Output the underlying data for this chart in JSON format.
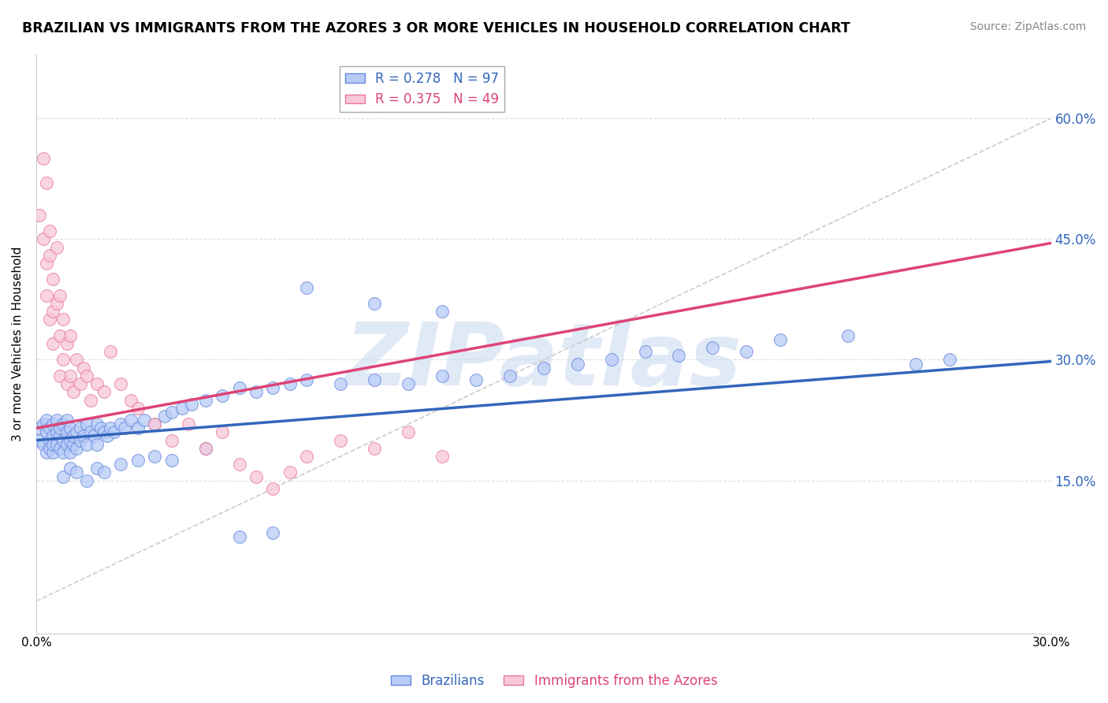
{
  "title": "BRAZILIAN VS IMMIGRANTS FROM THE AZORES 3 OR MORE VEHICLES IN HOUSEHOLD CORRELATION CHART",
  "source": "Source: ZipAtlas.com",
  "ylabel": "3 or more Vehicles in Household",
  "y_ticks": [
    0.15,
    0.3,
    0.45,
    0.6
  ],
  "y_tick_labels": [
    "15.0%",
    "30.0%",
    "45.0%",
    "60.0%"
  ],
  "xlim": [
    0.0,
    0.3
  ],
  "ylim": [
    -0.04,
    0.68
  ],
  "legend_entry1": "R = 0.278   N = 97",
  "legend_entry2": "R = 0.375   N = 49",
  "watermark": "ZIPatlas",
  "blue_scatter_x": [
    0.001,
    0.001,
    0.002,
    0.002,
    0.003,
    0.003,
    0.003,
    0.004,
    0.004,
    0.004,
    0.005,
    0.005,
    0.005,
    0.005,
    0.006,
    0.006,
    0.006,
    0.007,
    0.007,
    0.007,
    0.008,
    0.008,
    0.008,
    0.009,
    0.009,
    0.009,
    0.01,
    0.01,
    0.01,
    0.011,
    0.011,
    0.012,
    0.012,
    0.013,
    0.013,
    0.014,
    0.015,
    0.015,
    0.016,
    0.017,
    0.018,
    0.018,
    0.019,
    0.02,
    0.021,
    0.022,
    0.023,
    0.025,
    0.026,
    0.028,
    0.03,
    0.032,
    0.035,
    0.038,
    0.04,
    0.043,
    0.046,
    0.05,
    0.055,
    0.06,
    0.065,
    0.07,
    0.075,
    0.08,
    0.09,
    0.1,
    0.11,
    0.12,
    0.13,
    0.14,
    0.15,
    0.16,
    0.17,
    0.18,
    0.19,
    0.2,
    0.21,
    0.22,
    0.24,
    0.26,
    0.27,
    0.008,
    0.01,
    0.012,
    0.015,
    0.018,
    0.02,
    0.025,
    0.03,
    0.035,
    0.04,
    0.05,
    0.06,
    0.07,
    0.08,
    0.1,
    0.12
  ],
  "blue_scatter_y": [
    0.215,
    0.2,
    0.22,
    0.195,
    0.21,
    0.185,
    0.225,
    0.2,
    0.215,
    0.19,
    0.205,
    0.22,
    0.185,
    0.195,
    0.21,
    0.195,
    0.225,
    0.205,
    0.19,
    0.215,
    0.2,
    0.185,
    0.22,
    0.195,
    0.21,
    0.225,
    0.2,
    0.185,
    0.215,
    0.195,
    0.205,
    0.21,
    0.19,
    0.215,
    0.2,
    0.205,
    0.195,
    0.22,
    0.21,
    0.205,
    0.22,
    0.195,
    0.215,
    0.21,
    0.205,
    0.215,
    0.21,
    0.22,
    0.215,
    0.225,
    0.215,
    0.225,
    0.22,
    0.23,
    0.235,
    0.24,
    0.245,
    0.25,
    0.255,
    0.265,
    0.26,
    0.265,
    0.27,
    0.275,
    0.27,
    0.275,
    0.27,
    0.28,
    0.275,
    0.28,
    0.29,
    0.295,
    0.3,
    0.31,
    0.305,
    0.315,
    0.31,
    0.325,
    0.33,
    0.295,
    0.3,
    0.155,
    0.165,
    0.16,
    0.15,
    0.165,
    0.16,
    0.17,
    0.175,
    0.18,
    0.175,
    0.19,
    0.08,
    0.085,
    0.39,
    0.37,
    0.36
  ],
  "pink_scatter_x": [
    0.001,
    0.002,
    0.002,
    0.003,
    0.003,
    0.003,
    0.004,
    0.004,
    0.004,
    0.005,
    0.005,
    0.005,
    0.006,
    0.006,
    0.007,
    0.007,
    0.007,
    0.008,
    0.008,
    0.009,
    0.009,
    0.01,
    0.01,
    0.011,
    0.012,
    0.013,
    0.014,
    0.015,
    0.016,
    0.018,
    0.02,
    0.022,
    0.025,
    0.028,
    0.03,
    0.035,
    0.04,
    0.045,
    0.05,
    0.055,
    0.06,
    0.065,
    0.07,
    0.075,
    0.08,
    0.09,
    0.1,
    0.11,
    0.12
  ],
  "pink_scatter_y": [
    0.48,
    0.55,
    0.45,
    0.42,
    0.38,
    0.52,
    0.43,
    0.35,
    0.46,
    0.4,
    0.32,
    0.36,
    0.37,
    0.44,
    0.38,
    0.28,
    0.33,
    0.3,
    0.35,
    0.32,
    0.27,
    0.28,
    0.33,
    0.26,
    0.3,
    0.27,
    0.29,
    0.28,
    0.25,
    0.27,
    0.26,
    0.31,
    0.27,
    0.25,
    0.24,
    0.22,
    0.2,
    0.22,
    0.19,
    0.21,
    0.17,
    0.155,
    0.14,
    0.16,
    0.18,
    0.2,
    0.19,
    0.21,
    0.18
  ],
  "blue_line_x": [
    0.0,
    0.3
  ],
  "blue_line_y": [
    0.2,
    0.298
  ],
  "pink_line_x": [
    0.0,
    0.3
  ],
  "pink_line_y": [
    0.215,
    0.445
  ],
  "ref_line_x": [
    0.0,
    0.3
  ],
  "ref_line_y": [
    0.0,
    0.6
  ]
}
